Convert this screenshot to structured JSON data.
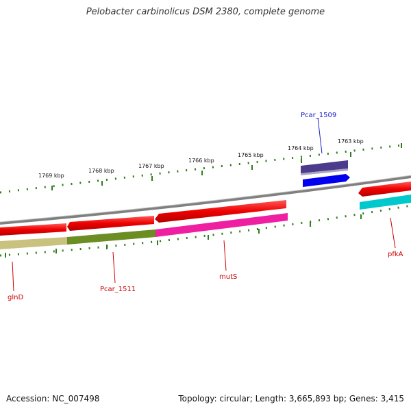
{
  "title": "Pelobacter carbinolicus DSM 2380, complete genome",
  "footer": {
    "accession": "Accession: NC_007498",
    "topology": "Topology: circular; Length: 3,665,893 bp; Genes: 3,415"
  },
  "ruler": {
    "unit": "kbp",
    "labels": [
      "1769 kbp",
      "1768 kbp",
      "1767 kbp",
      "1766 kbp",
      "1765 kbp",
      "1764 kbp",
      "1763 kbp"
    ]
  },
  "genes": [
    {
      "id": "Pcar_1509",
      "label": "Pcar_1509",
      "strand": "plus",
      "color": "#0000ee",
      "label_color": "#1a1acc"
    },
    {
      "id": "glnD",
      "label": "glnD",
      "strand": "minus",
      "color": "#c8c27e",
      "label_color": "#cc0000"
    },
    {
      "id": "Pcar_1511",
      "label": "Pcar_1511",
      "strand": "minus",
      "color": "#6b8e23",
      "label_color": "#cc0000"
    },
    {
      "id": "mutS",
      "label": "mutS",
      "strand": "minus",
      "color": "#ee1fa0",
      "label_color": "#cc0000"
    },
    {
      "id": "pfkA",
      "label": "pfkA",
      "strand": "minus",
      "color": "#00c8cc",
      "label_color": "#cc0000"
    }
  ],
  "colors": {
    "backbone": "#808080",
    "ruler_tick": "#2e7d1a",
    "cds_red": "#ee0000",
    "plus_gene_dark": "#4b3b8a"
  }
}
